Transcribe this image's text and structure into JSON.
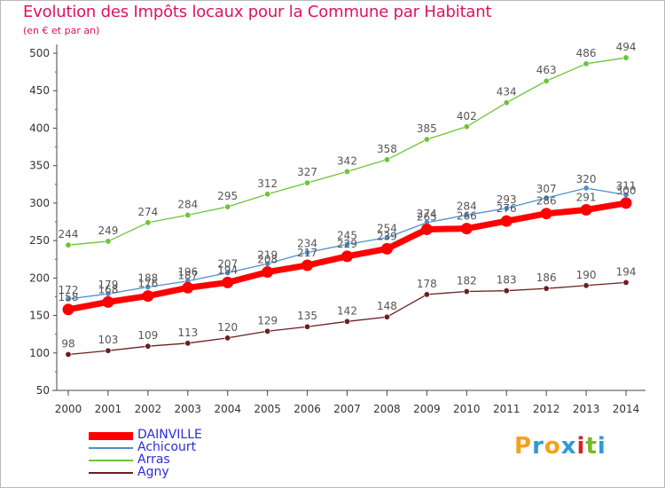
{
  "title": "Evolution des Impôts locaux pour la Commune par Habitant",
  "subtitle": "(en € et par an)",
  "logo": {
    "text": "Proxiti",
    "letters": [
      "P",
      "r",
      "o",
      "x",
      "i",
      "t",
      "i"
    ],
    "colors": [
      "#f5a21b",
      "#2e9bd6",
      "#f5a21b",
      "#2e9bd6",
      "#e31e24",
      "#78b829",
      "#2e9bd6"
    ]
  },
  "chart_data": {
    "type": "line",
    "title": "Evolution des Impôts locaux pour la Commune par Habitant",
    "subtitle": "(en € et par an)",
    "xlabel": "",
    "ylabel": "",
    "categories": [
      "2000",
      "2001",
      "2002",
      "2003",
      "2004",
      "2005",
      "2006",
      "2007",
      "2008",
      "2009",
      "2010",
      "2011",
      "2012",
      "2013",
      "2014"
    ],
    "ylim": [
      50,
      500
    ],
    "yticks": [
      50,
      100,
      150,
      200,
      250,
      300,
      350,
      400,
      450,
      500
    ],
    "grid": false,
    "legend": "bottom-left",
    "series": [
      {
        "name": "DAINVILLE",
        "color": "#ff0000",
        "values": [
          158,
          168,
          176,
          187,
          194,
          208,
          217,
          229,
          239,
          265,
          266,
          276,
          286,
          291,
          300
        ],
        "labels": [
          "158",
          "168",
          "176",
          "187",
          "194",
          "208",
          "217",
          "229",
          "239",
          "265",
          "266",
          "276",
          "286",
          "291",
          "300"
        ]
      },
      {
        "name": "Achicourt",
        "color": "#4d8fce",
        "values": [
          172,
          179,
          188,
          196,
          207,
          219,
          234,
          245,
          254,
          274,
          284,
          293,
          307,
          320,
          311
        ],
        "labels": [
          "172",
          "179",
          "188",
          "196",
          "207",
          "219",
          "234",
          "245",
          "254",
          "274",
          "284",
          "293",
          "307",
          "320",
          "311"
        ]
      },
      {
        "name": "Arras",
        "color": "#6dc43a",
        "values": [
          244,
          249,
          274,
          284,
          295,
          312,
          327,
          342,
          358,
          385,
          402,
          434,
          463,
          486,
          494
        ],
        "labels": [
          "244",
          "249",
          "274",
          "284",
          "295",
          "312",
          "327",
          "342",
          "358",
          "385",
          "402",
          "434",
          "463",
          "486",
          "494"
        ]
      },
      {
        "name": "Agny",
        "color": "#6b1f22",
        "values": [
          98,
          103,
          109,
          113,
          120,
          129,
          135,
          142,
          148,
          178,
          182,
          183,
          186,
          190,
          194
        ],
        "labels": [
          "98",
          "103",
          "109",
          "113",
          "120",
          "129",
          "135",
          "142",
          "148",
          "178",
          "182",
          "183",
          "186",
          "190",
          "194"
        ]
      }
    ]
  }
}
